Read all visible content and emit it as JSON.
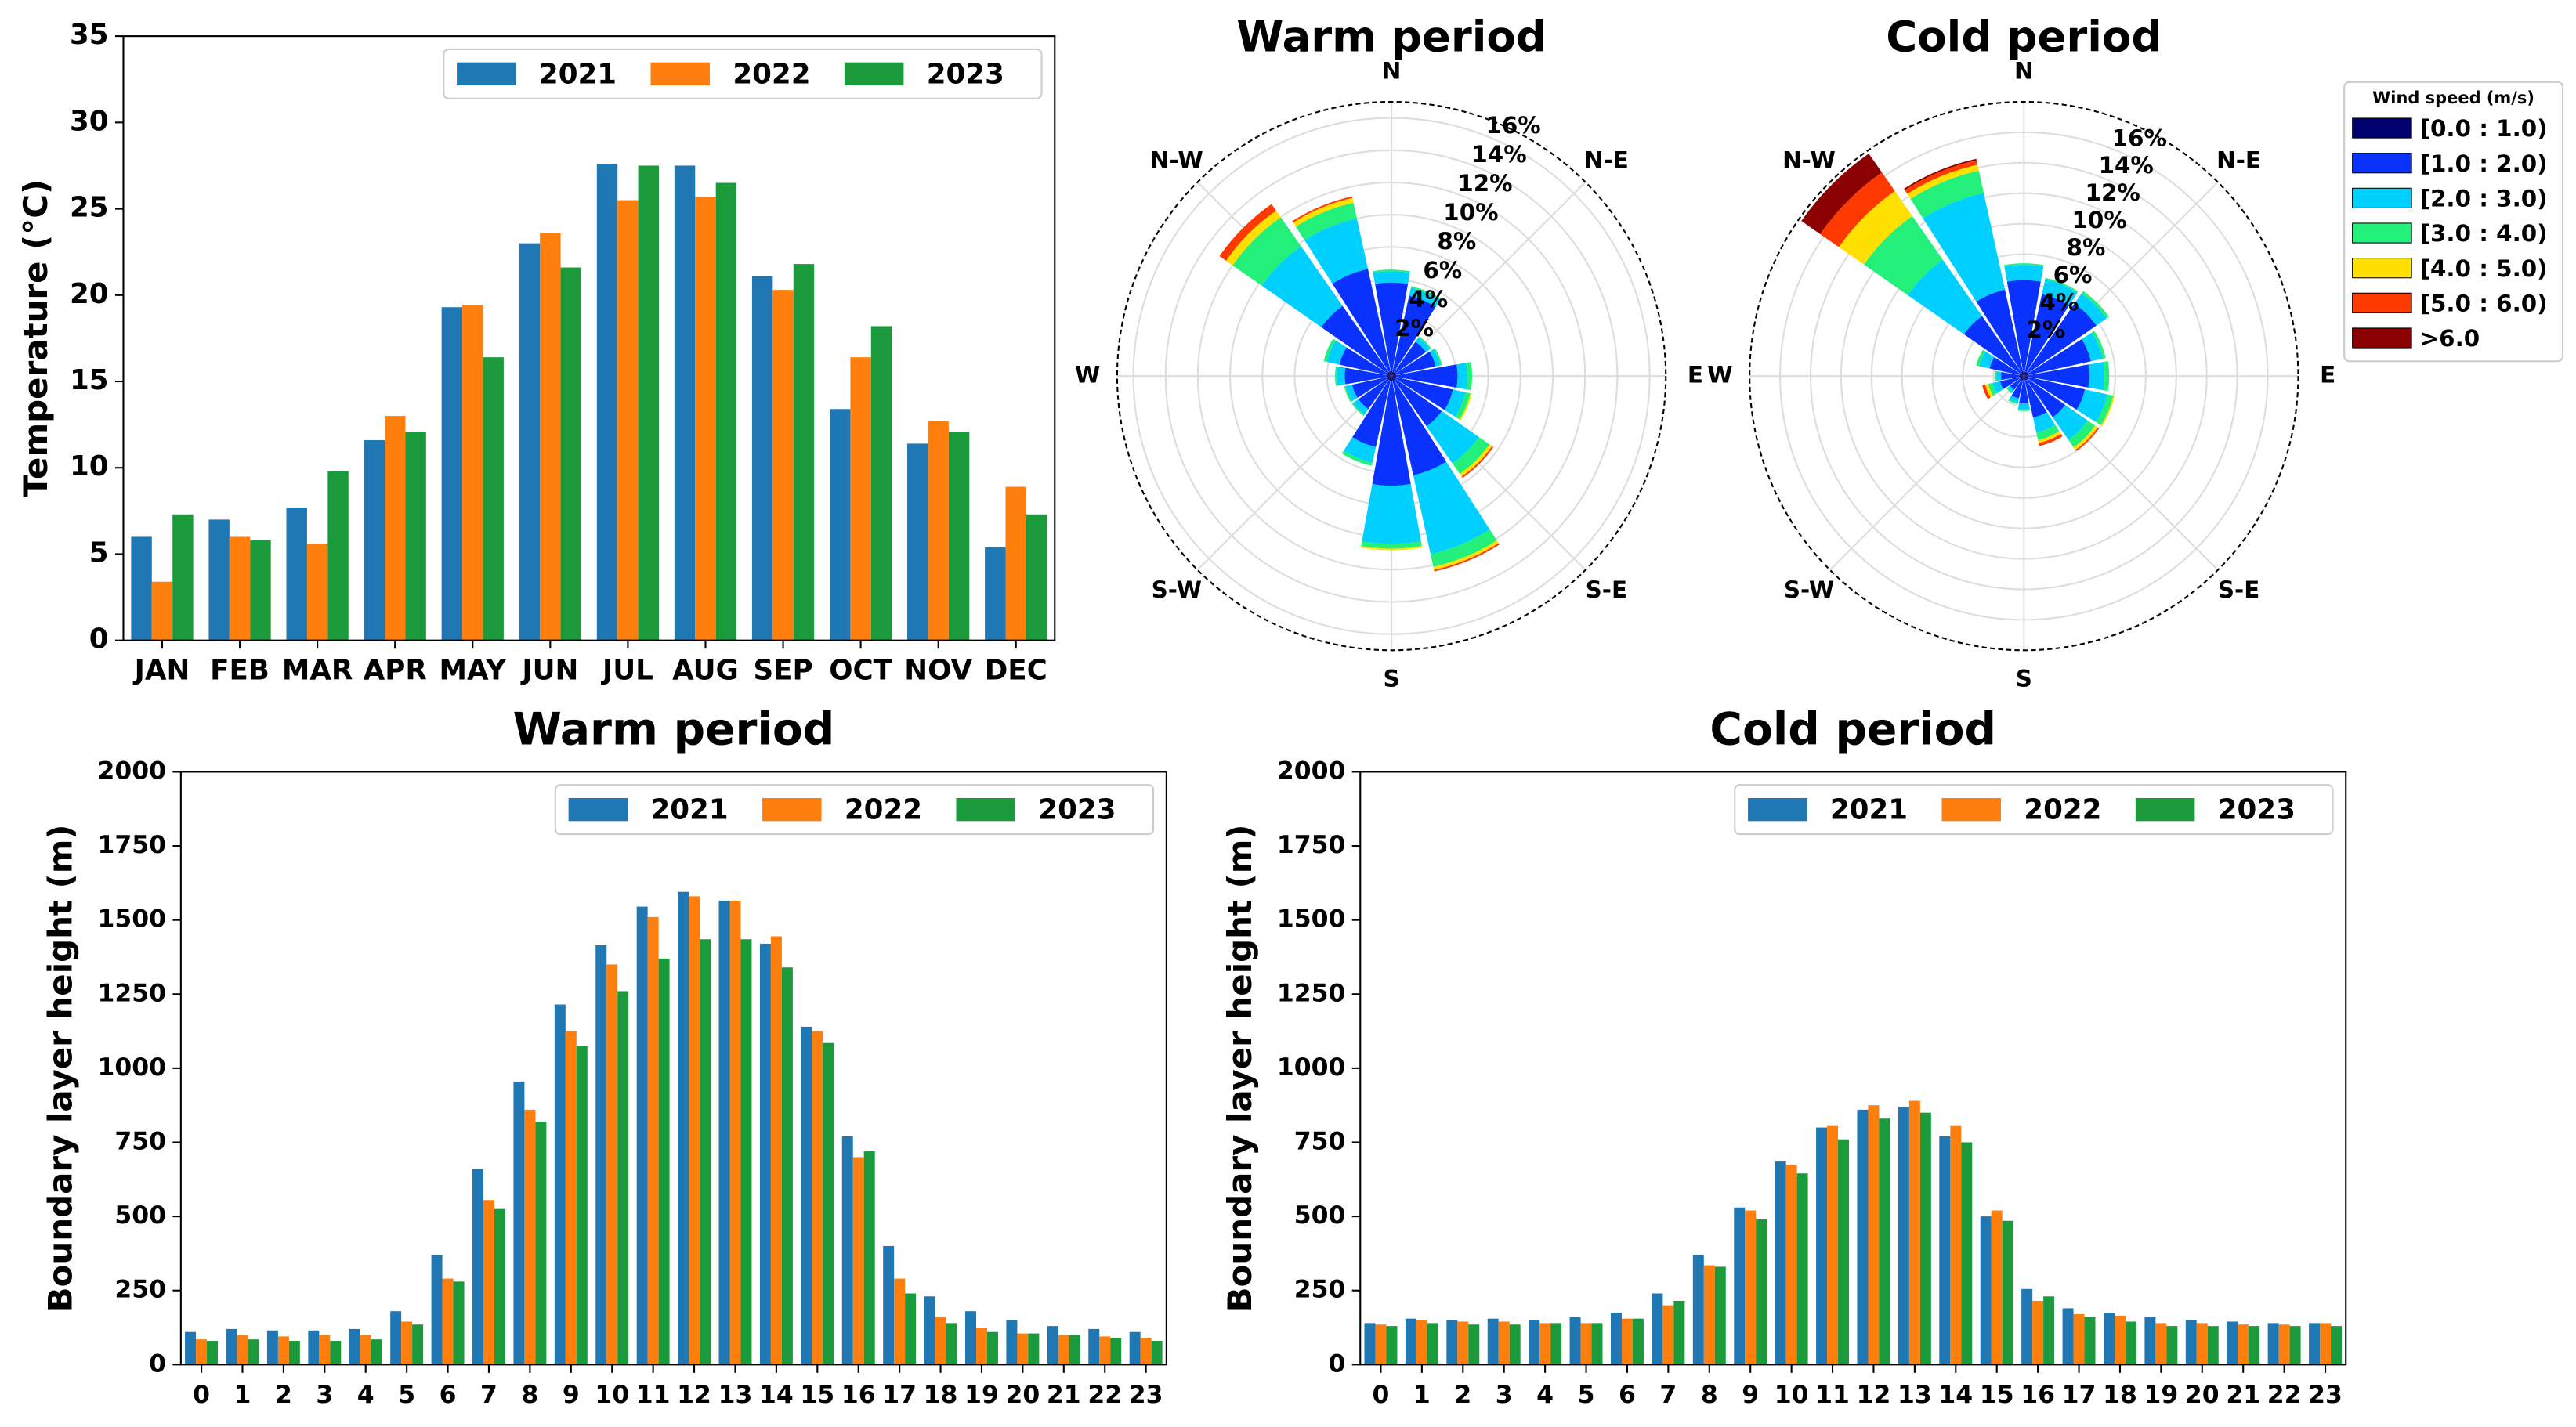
{
  "chart_data": [
    {
      "type": "bar",
      "ylabel": "Temperature (°C)",
      "categories": [
        "JAN",
        "FEB",
        "MAR",
        "APR",
        "MAY",
        "JUN",
        "JUL",
        "AUG",
        "SEP",
        "OCT",
        "NOV",
        "DEC"
      ],
      "series": [
        {
          "name": "2021",
          "color": "#1f77b4",
          "values": [
            6.0,
            7.0,
            7.7,
            11.6,
            19.3,
            23.0,
            27.6,
            27.5,
            21.1,
            13.4,
            11.4,
            5.4
          ]
        },
        {
          "name": "2022",
          "color": "#ff7f0e",
          "values": [
            3.4,
            6.0,
            5.6,
            13.0,
            19.4,
            23.6,
            25.5,
            25.7,
            20.3,
            16.4,
            12.7,
            8.9
          ]
        },
        {
          "name": "2023",
          "color": "#1a9a3b",
          "values": [
            7.3,
            5.8,
            9.8,
            12.1,
            16.4,
            21.6,
            27.5,
            26.5,
            21.8,
            18.2,
            12.1,
            7.3
          ]
        }
      ],
      "ylim": [
        0,
        35
      ],
      "yticks": [
        0,
        5,
        10,
        15,
        20,
        25,
        30,
        35
      ],
      "legend": "upper right"
    },
    {
      "type": "windrose",
      "title": "Warm period",
      "direction_labels": [
        "N",
        "N-E",
        "E",
        "S-E",
        "S",
        "S-W",
        "W",
        "N-W"
      ],
      "rlim": [
        0,
        17
      ],
      "rticks": [
        {
          "value": 2,
          "label": "2%"
        },
        {
          "value": 4,
          "label": "4%"
        },
        {
          "value": 6,
          "label": "6%"
        },
        {
          "value": 8,
          "label": "8%"
        },
        {
          "value": 10,
          "label": "10%"
        },
        {
          "value": 12,
          "label": "12%"
        },
        {
          "value": 14,
          "label": "14%"
        },
        {
          "value": 16,
          "label": "16%"
        }
      ],
      "series": [
        {
          "color": "#00006e",
          "values": [
            0.3,
            0.3,
            0.3,
            0.3,
            0.3,
            0.3,
            0.3,
            0.3,
            0.3,
            0.3,
            0.3,
            0.3,
            0.3,
            0.3,
            0.3,
            0.3
          ]
        },
        {
          "color": "#0a32ff",
          "values": [
            5.5,
            4.8,
            2.3,
            2.5,
            3.8,
            3.6,
            3.5,
            6.0,
            6.5,
            4.2,
            2.2,
            2.2,
            2.6,
            3.0,
            5.0,
            6.5
          ]
        },
        {
          "color": "#00d0ff",
          "values": [
            0.7,
            0.5,
            0.3,
            0.3,
            0.6,
            0.8,
            2.8,
            5.0,
            3.6,
            1.0,
            0.4,
            0.4,
            0.5,
            0.8,
            4.5,
            3.2
          ]
        },
        {
          "color": "#22f07a",
          "values": [
            0.1,
            0.1,
            0.1,
            0.1,
            0.3,
            0.3,
            0.8,
            0.8,
            0.3,
            0.2,
            0.1,
            0.1,
            0.1,
            0.2,
            2.2,
            1.0
          ]
        },
        {
          "color": "#ffe000",
          "values": [
            0,
            0,
            0,
            0,
            0,
            0.1,
            0.2,
            0.2,
            0.1,
            0,
            0,
            0,
            0,
            0,
            0.5,
            0.3
          ]
        },
        {
          "color": "#ff3a00",
          "values": [
            0,
            0,
            0,
            0,
            0,
            0,
            0.1,
            0.1,
            0,
            0,
            0,
            0,
            0,
            0,
            0.5,
            0.1
          ]
        },
        {
          "color": "#8b0000",
          "values": [
            0,
            0,
            0,
            0,
            0,
            0,
            0,
            0,
            0,
            0,
            0,
            0,
            0,
            0,
            0,
            0
          ]
        }
      ]
    },
    {
      "type": "windrose",
      "title": "Cold period",
      "direction_labels": [
        "N",
        "N-E",
        "E",
        "S-E",
        "S",
        "S-W",
        "W",
        "N-W"
      ],
      "rlim": [
        0,
        18
      ],
      "rticks": [
        {
          "value": 2,
          "label": "2%"
        },
        {
          "value": 4,
          "label": "4%"
        },
        {
          "value": 6,
          "label": "6%"
        },
        {
          "value": 8,
          "label": "8%"
        },
        {
          "value": 10,
          "label": "10%"
        },
        {
          "value": 12,
          "label": "12%"
        },
        {
          "value": 14,
          "label": "14%"
        },
        {
          "value": 16,
          "label": "16%"
        }
      ],
      "legend_title": "Wind speed (m/s)",
      "series": [
        {
          "name": "[0.0 : 1.0)",
          "color": "#00006e",
          "values": [
            0.3,
            0.3,
            0.3,
            0.3,
            0.3,
            0.3,
            0.3,
            0.3,
            0.3,
            0.3,
            0.3,
            0.3,
            0.3,
            0.3,
            0.3,
            0.3
          ]
        },
        {
          "name": "[1.0 : 2.0)",
          "color": "#0a32ff",
          "values": [
            6.0,
            5.2,
            5.5,
            4.2,
            4.0,
            3.8,
            3.0,
            2.5,
            1.5,
            1.2,
            0.8,
            1.3,
            1.2,
            2.0,
            4.5,
            5.5
          ]
        },
        {
          "name": "[2.0 : 3.0)",
          "color": "#00d0ff",
          "values": [
            1.0,
            1.0,
            0.8,
            0.8,
            1.0,
            1.5,
            1.8,
            1.0,
            0.4,
            0.3,
            0.2,
            0.5,
            0.3,
            0.7,
            4.5,
            6.5
          ]
        },
        {
          "name": "[3.0 : 4.0)",
          "color": "#22f07a",
          "values": [
            0.1,
            0.1,
            0.2,
            0.2,
            0.3,
            0.4,
            0.6,
            0.5,
            0.1,
            0.1,
            0.1,
            0.3,
            0.1,
            0.2,
            3.5,
            1.5
          ]
        },
        {
          "name": "[4.0 : 5.0)",
          "color": "#ffe000",
          "values": [
            0,
            0,
            0,
            0,
            0,
            0.1,
            0.2,
            0.2,
            0,
            0,
            0,
            0.2,
            0,
            0,
            2.0,
            0.4
          ]
        },
        {
          "name": "[5.0 : 6.0)",
          "color": "#ff3a00",
          "values": [
            0,
            0,
            0,
            0,
            0,
            0,
            0.1,
            0.2,
            0,
            0,
            0,
            0.2,
            0,
            0,
            1.5,
            0.3
          ]
        },
        {
          "name": ">6.0",
          "color": "#8b0000",
          "values": [
            0,
            0,
            0,
            0,
            0,
            0,
            0,
            0,
            0,
            0,
            0,
            0,
            0,
            0,
            1.5,
            0.1
          ]
        }
      ]
    },
    {
      "type": "bar",
      "title": "Warm period",
      "ylabel": "Boundary layer height (m)",
      "categories": [
        "0",
        "1",
        "2",
        "3",
        "4",
        "5",
        "6",
        "7",
        "8",
        "9",
        "10",
        "11",
        "12",
        "13",
        "14",
        "15",
        "16",
        "17",
        "18",
        "19",
        "20",
        "21",
        "22",
        "23"
      ],
      "series": [
        {
          "name": "2021",
          "color": "#1f77b4",
          "values": [
            110,
            120,
            115,
            115,
            120,
            180,
            370,
            660,
            955,
            1215,
            1415,
            1545,
            1595,
            1565,
            1420,
            1140,
            770,
            400,
            230,
            180,
            150,
            130,
            120,
            110
          ]
        },
        {
          "name": "2022",
          "color": "#ff7f0e",
          "values": [
            85,
            100,
            95,
            100,
            100,
            145,
            290,
            555,
            860,
            1125,
            1350,
            1510,
            1580,
            1565,
            1445,
            1125,
            700,
            290,
            160,
            125,
            105,
            100,
            95,
            90
          ]
        },
        {
          "name": "2023",
          "color": "#1a9a3b",
          "values": [
            80,
            85,
            80,
            80,
            85,
            135,
            280,
            525,
            820,
            1075,
            1260,
            1370,
            1435,
            1435,
            1340,
            1085,
            720,
            240,
            140,
            110,
            105,
            100,
            90,
            80
          ]
        }
      ],
      "ylim": [
        0,
        2000
      ],
      "yticks": [
        0,
        250,
        500,
        750,
        1000,
        1250,
        1500,
        1750,
        2000
      ],
      "legend": "upper right"
    },
    {
      "type": "bar",
      "title": "Cold period",
      "ylabel": "Boundary layer height (m)",
      "categories": [
        "0",
        "1",
        "2",
        "3",
        "4",
        "5",
        "6",
        "7",
        "8",
        "9",
        "10",
        "11",
        "12",
        "13",
        "14",
        "15",
        "16",
        "17",
        "18",
        "19",
        "20",
        "21",
        "22",
        "23"
      ],
      "series": [
        {
          "name": "2021",
          "color": "#1f77b4",
          "values": [
            140,
            155,
            150,
            155,
            150,
            160,
            175,
            240,
            370,
            530,
            685,
            800,
            860,
            870,
            770,
            500,
            255,
            190,
            175,
            160,
            150,
            145,
            140,
            140
          ]
        },
        {
          "name": "2022",
          "color": "#ff7f0e",
          "values": [
            135,
            150,
            145,
            145,
            140,
            140,
            155,
            200,
            335,
            520,
            675,
            805,
            875,
            890,
            805,
            520,
            215,
            170,
            165,
            140,
            140,
            135,
            135,
            140
          ]
        },
        {
          "name": "2023",
          "color": "#1a9a3b",
          "values": [
            130,
            140,
            135,
            135,
            140,
            140,
            155,
            215,
            330,
            490,
            645,
            760,
            830,
            850,
            750,
            485,
            230,
            160,
            145,
            130,
            130,
            130,
            130,
            130
          ]
        }
      ],
      "ylim": [
        0,
        2000
      ],
      "yticks": [
        0,
        250,
        500,
        750,
        1000,
        1250,
        1500,
        1750,
        2000
      ],
      "legend": "upper right"
    }
  ]
}
